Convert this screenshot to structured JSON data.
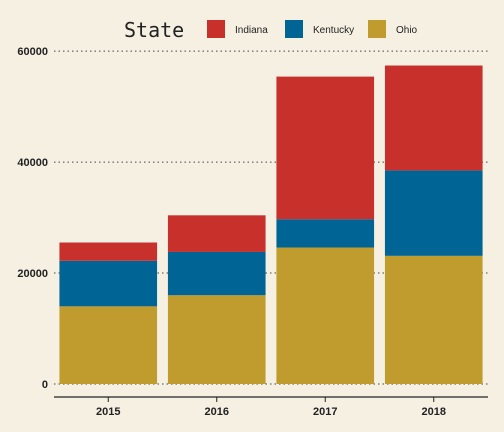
{
  "chart_data": {
    "type": "bar",
    "stacked": true,
    "categories": [
      "2015",
      "2016",
      "2017",
      "2018"
    ],
    "series": [
      {
        "name": "Ohio",
        "values": [
          14000,
          16000,
          24600,
          23100
        ]
      },
      {
        "name": "Kentucky",
        "values": [
          8200,
          7800,
          5100,
          15400
        ]
      },
      {
        "name": "Indiana",
        "values": [
          3300,
          6600,
          25700,
          18900
        ]
      }
    ],
    "ylim": [
      0,
      62000
    ],
    "yticks": [
      0,
      20000,
      40000,
      60000
    ],
    "ytick_labels": [
      "0",
      "20000",
      "40000",
      "60000"
    ],
    "legend": {
      "title": "State",
      "position": "top",
      "entries": [
        "Indiana",
        "Kentucky",
        "Ohio"
      ]
    },
    "colors": {
      "Indiana": "#c8302b",
      "Kentucky": "#006495",
      "Ohio": "#c09c2e"
    },
    "grid": "horizontal dotted"
  }
}
